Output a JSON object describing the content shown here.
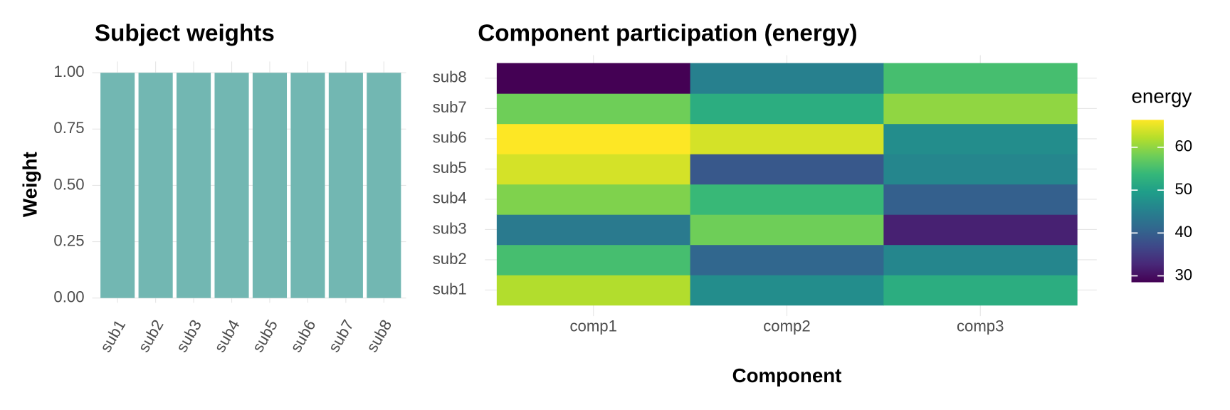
{
  "chart_data": [
    {
      "type": "bar",
      "title": "Subject weights",
      "y_label": "Weight",
      "categories": [
        "sub1",
        "sub2",
        "sub3",
        "sub4",
        "sub5",
        "sub6",
        "sub7",
        "sub8"
      ],
      "values": [
        1,
        1,
        1,
        1,
        1,
        1,
        1,
        1
      ],
      "color": "#72b7b2",
      "ylim": [
        0,
        1.05
      ],
      "yticks": [
        {
          "value": 0,
          "label": "0.00"
        },
        {
          "value": 0.25,
          "label": "0.25"
        },
        {
          "value": 0.5,
          "label": "0.50"
        },
        {
          "value": 0.75,
          "label": "0.75"
        },
        {
          "value": 1,
          "label": "1.00"
        }
      ],
      "grid": true
    },
    {
      "type": "heatmap",
      "title": "Component participation (energy)",
      "x_label": "Component",
      "x": [
        "comp1",
        "comp2",
        "comp3"
      ],
      "y": [
        "sub1",
        "sub2",
        "sub3",
        "sub4",
        "sub5",
        "sub6",
        "sub7",
        "sub8"
      ],
      "values": [
        [
          62,
          47,
          52
        ],
        [
          55,
          41,
          46
        ],
        [
          44,
          58,
          32
        ],
        [
          59,
          54,
          40
        ],
        [
          64,
          39,
          46
        ],
        [
          66.4,
          64,
          47
        ],
        [
          58,
          52,
          60
        ],
        [
          28.5,
          45,
          55
        ]
      ],
      "legend_title": "energy",
      "colorlim": [
        28.5,
        66.4
      ],
      "colorticks": [
        30,
        40,
        50,
        60
      ],
      "colors": [
        "#440154",
        "#482878",
        "#3e4989",
        "#31688e",
        "#26828e",
        "#1f9e89",
        "#35b779",
        "#6ece58",
        "#b5de2b",
        "#fde725"
      ],
      "grid": true
    }
  ]
}
